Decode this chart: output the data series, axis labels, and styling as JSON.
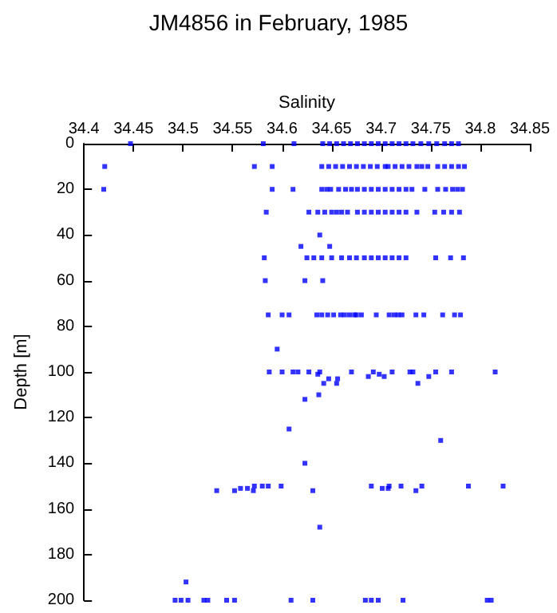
{
  "chart_data": {
    "type": "scatter",
    "title": "JM4856 in February, 1985",
    "xlabel": "Salinity",
    "ylabel": "Depth [m]",
    "xlim": [
      34.4,
      34.85
    ],
    "xticks": [
      34.4,
      34.45,
      34.5,
      34.55,
      34.6,
      34.65,
      34.7,
      34.75,
      34.8,
      34.85
    ],
    "ylim": [
      200,
      0
    ],
    "yticks": [
      0,
      20,
      40,
      60,
      80,
      100,
      120,
      140,
      160,
      180,
      200
    ],
    "grid": false,
    "marker": "square",
    "series": [
      {
        "color": "#0000ff",
        "x": [
          34.447,
          34.581,
          34.612,
          34.641,
          34.648,
          34.655,
          34.662,
          34.669,
          34.676,
          34.683,
          34.69,
          34.697,
          34.704,
          34.711,
          34.718,
          34.725,
          34.732,
          34.74,
          34.748,
          34.756,
          34.764,
          34.771,
          34.778,
          34.421,
          34.572,
          34.59,
          34.64,
          34.647,
          34.654,
          34.661,
          34.668,
          34.675,
          34.682,
          34.689,
          34.696,
          34.704,
          34.707,
          34.714,
          34.721,
          34.728,
          34.736,
          34.741,
          34.747,
          34.757,
          34.764,
          34.771,
          34.778,
          34.784,
          34.42,
          34.59,
          34.611,
          34.64,
          34.645,
          34.649,
          34.657,
          34.664,
          34.67,
          34.676,
          34.683,
          34.69,
          34.697,
          34.704,
          34.711,
          34.718,
          34.725,
          34.731,
          34.744,
          34.757,
          34.765,
          34.772,
          34.777,
          34.782,
          34.584,
          34.627,
          34.636,
          34.643,
          34.65,
          34.655,
          34.66,
          34.666,
          34.676,
          34.683,
          34.69,
          34.697,
          34.704,
          34.711,
          34.718,
          34.725,
          34.736,
          34.754,
          34.763,
          34.771,
          34.779,
          34.638,
          34.619,
          34.648,
          34.582,
          34.625,
          34.632,
          34.64,
          34.65,
          34.66,
          34.668,
          34.675,
          34.683,
          34.69,
          34.697,
          34.704,
          34.711,
          34.718,
          34.725,
          34.755,
          34.77,
          34.783,
          34.583,
          34.623,
          34.641,
          34.586,
          34.6,
          34.607,
          34.635,
          34.64,
          34.646,
          34.652,
          34.659,
          34.663,
          34.668,
          34.673,
          34.675,
          34.68,
          34.695,
          34.708,
          34.713,
          34.717,
          34.721,
          34.735,
          34.743,
          34.762,
          34.774,
          34.78,
          34.595,
          34.587,
          34.6,
          34.611,
          34.616,
          34.627,
          34.638,
          34.67,
          34.692,
          34.711,
          34.729,
          34.732,
          34.755,
          34.771,
          34.815,
          34.636,
          34.698,
          34.687,
          34.703,
          34.748,
          34.647,
          34.656,
          34.642,
          34.655,
          34.737,
          34.637,
          34.623,
          34.607,
          34.76,
          34.623,
          34.572,
          34.58,
          34.586,
          34.599,
          34.69,
          34.708,
          34.72,
          34.741,
          34.788,
          34.823,
          34.558,
          34.565,
          34.701,
          34.707,
          34.534,
          34.552,
          34.571,
          34.631,
          34.735,
          34.638,
          34.503,
          34.492,
          34.498,
          34.505,
          34.521,
          34.525,
          34.544,
          34.552,
          34.609,
          34.631,
          34.684,
          34.69,
          34.697,
          34.722,
          34.807,
          34.811
        ],
        "values": [
          0,
          0,
          0,
          0,
          0,
          0,
          0,
          0,
          0,
          0,
          0,
          0,
          0,
          0,
          0,
          0,
          0,
          0,
          0,
          0,
          0,
          0,
          0,
          10,
          10,
          10,
          10,
          10,
          10,
          10,
          10,
          10,
          10,
          10,
          10,
          10,
          10,
          10,
          10,
          10,
          10,
          10,
          10,
          10,
          10,
          10,
          10,
          10,
          20,
          20,
          20,
          20,
          20,
          20,
          20,
          20,
          20,
          20,
          20,
          20,
          20,
          20,
          20,
          20,
          20,
          20,
          20,
          20,
          20,
          20,
          20,
          20,
          30,
          30,
          30,
          30,
          30,
          30,
          30,
          30,
          30,
          30,
          30,
          30,
          30,
          30,
          30,
          30,
          30,
          30,
          30,
          30,
          30,
          40,
          45,
          45,
          50,
          50,
          50,
          50,
          50,
          50,
          50,
          50,
          50,
          50,
          50,
          50,
          50,
          50,
          50,
          50,
          50,
          50,
          60,
          60,
          60,
          75,
          75,
          75,
          75,
          75,
          75,
          75,
          75,
          75,
          75,
          75,
          75,
          75,
          75,
          75,
          75,
          75,
          75,
          75,
          75,
          75,
          75,
          75,
          90,
          100,
          100,
          100,
          100,
          100,
          100,
          100,
          100,
          100,
          100,
          100,
          100,
          100,
          100,
          101,
          101,
          102,
          102,
          102,
          103,
          103,
          105,
          105,
          105,
          110,
          112,
          125,
          130,
          140,
          150,
          150,
          150,
          150,
          150,
          150,
          150,
          150,
          150,
          150,
          151,
          151,
          151,
          151,
          152,
          152,
          152,
          152,
          152,
          168,
          192,
          200,
          200,
          200,
          200,
          200,
          200,
          200,
          200,
          200,
          200,
          200,
          200,
          200,
          200,
          200
        ]
      }
    ]
  }
}
